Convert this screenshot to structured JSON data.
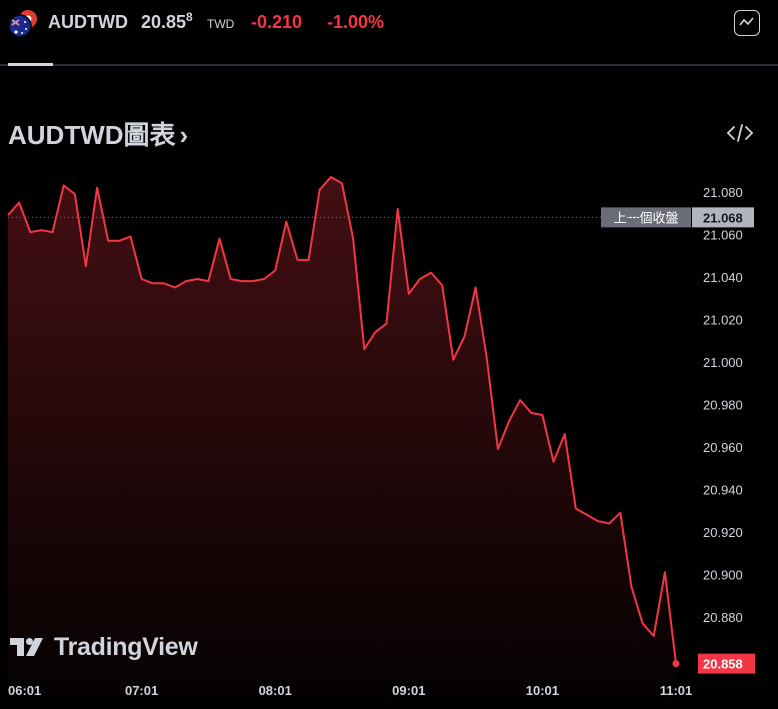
{
  "header": {
    "flag_icon": "australia-taiwan-flag-icon",
    "symbol": "AUDTWD",
    "price_main": "20.85",
    "price_sup": "8",
    "currency": "TWD",
    "change": "-0.210",
    "change_pct": "-1.00%",
    "chart_toggle_icon": "line-chart-icon"
  },
  "title": {
    "text": "AUDTWD圖表",
    "chevron": "›",
    "embed_icon": "code-icon"
  },
  "colors": {
    "line": "#f23645",
    "negative": "#f23645",
    "background": "#000000",
    "text": "#d1d4dc",
    "prev_close_badge": "#6a6d78"
  },
  "logo": {
    "text": "TradingView",
    "icon": "tradingview-logo-icon"
  },
  "chart_data": {
    "type": "area",
    "x_tick_labels": [
      "06:01",
      "07:01",
      "08:01",
      "09:01",
      "10:01",
      "11:01"
    ],
    "y_tick_labels": [
      "21.080",
      "21.060",
      "21.040",
      "21.020",
      "21.000",
      "20.980",
      "20.960",
      "20.940",
      "20.920",
      "20.900",
      "20.880"
    ],
    "ylim": [
      20.855,
      21.095
    ],
    "prev_close": {
      "label": "上一個收盤",
      "value": "21.068"
    },
    "last_price": "20.858",
    "grid": false,
    "series": [
      {
        "x": [
          "06:01",
          "06:06",
          "06:11",
          "06:16",
          "06:21",
          "06:26",
          "06:31",
          "06:36",
          "06:41",
          "06:46",
          "06:51",
          "06:56",
          "07:01",
          "07:06",
          "07:11",
          "07:16",
          "07:21",
          "07:26",
          "07:31",
          "07:36",
          "07:41",
          "07:46",
          "07:51",
          "07:56",
          "08:01",
          "08:06",
          "08:11",
          "08:16",
          "08:21",
          "08:26",
          "08:31",
          "08:36",
          "08:41",
          "08:46",
          "08:51",
          "08:56",
          "09:01",
          "09:06",
          "09:11",
          "09:16",
          "09:21",
          "09:26",
          "09:31",
          "09:36",
          "09:41",
          "09:46",
          "09:51",
          "09:56",
          "10:01",
          "10:06",
          "10:11",
          "10:16",
          "10:21",
          "10:26",
          "10:31",
          "10:36",
          "10:41",
          "10:46",
          "10:51",
          "10:56",
          "11:01"
        ],
        "values": [
          21.069,
          21.075,
          21.061,
          21.062,
          21.061,
          21.083,
          21.079,
          21.045,
          21.082,
          21.057,
          21.057,
          21.059,
          21.039,
          21.037,
          21.037,
          21.035,
          21.038,
          21.039,
          21.038,
          21.058,
          21.039,
          21.038,
          21.038,
          21.039,
          21.043,
          21.066,
          21.048,
          21.048,
          21.081,
          21.087,
          21.084,
          21.058,
          21.006,
          21.014,
          21.018,
          21.072,
          21.032,
          21.039,
          21.042,
          21.036,
          21.001,
          21.012,
          21.035,
          21.002,
          20.959,
          20.972,
          20.982,
          20.976,
          20.975,
          20.953,
          20.966,
          20.931,
          20.928,
          20.925,
          20.924,
          20.929,
          20.894,
          20.877,
          20.871,
          20.901,
          20.858
        ]
      }
    ]
  }
}
